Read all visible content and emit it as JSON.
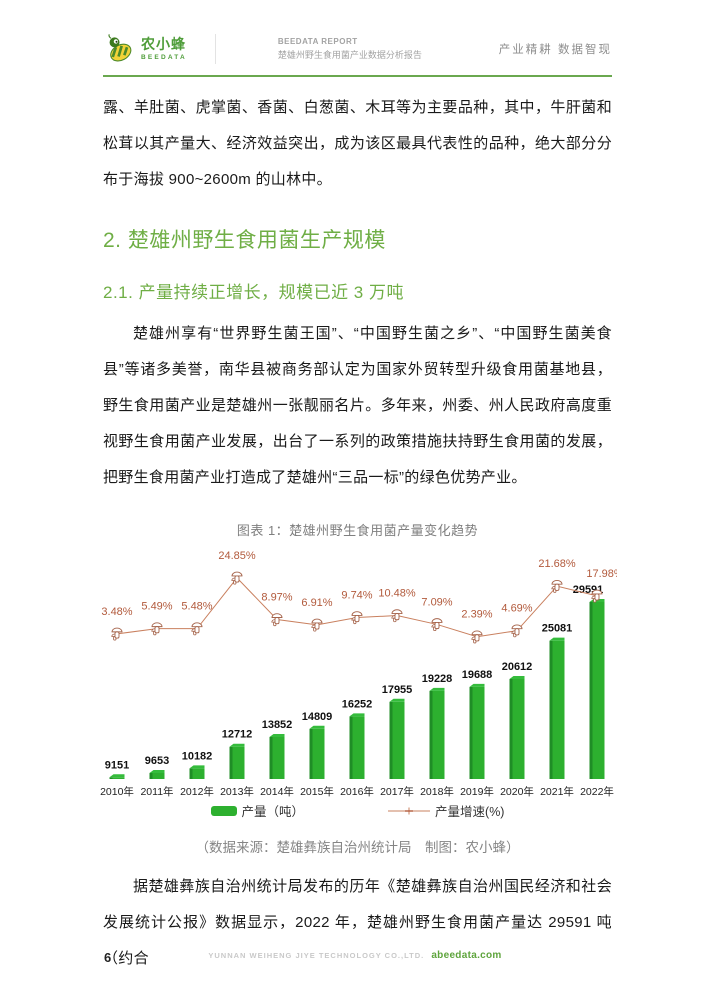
{
  "header": {
    "brand_cn": "农小蜂",
    "brand_en": "BEEDATA",
    "report_label": "BEEDATA REPORT",
    "report_subtitle": "楚雄州野生食用菌产业数据分析报告",
    "slogan": "产业精耕 数据智现"
  },
  "content": {
    "paragraph1": "露、羊肚菌、虎掌菌、香菌、白葱菌、木耳等为主要品种，其中，牛肝菌和松茸以其产量大、经济效益突出，成为该区最具代表性的品种，绝大部分分布于海拔 900~2600m 的山林中。",
    "heading2": "2. 楚雄州野生食用菌生产规模",
    "heading2_1": "2.1. 产量持续正增长，规模已近 3 万吨",
    "paragraph2": "楚雄州享有“世界野生菌王国”、“中国野生菌之乡”、“中国野生菌美食县”等诸多美誉，南华县被商务部认定为国家外贸转型升级食用菌基地县，野生食用菌产业是楚雄州一张靓丽名片。多年来，州委、州人民政府高度重视野生食用菌产业发展，出台了一系列的政策措施扶持野生食用菌的发展，把野生食用菌产业打造成了楚雄州“三品一标”的绿色优势产业。",
    "chart_caption": "图表 1：楚雄州野生食用菌产量变化趋势",
    "source_note": "（数据来源：楚雄彝族自治州统计局　制图：农小蜂）",
    "paragraph3": "据楚雄彝族自治州统计局发布的历年《楚雄彝族自治州国民经济和社会发展统计公报》数据显示，2022 年，楚雄州野生食用菌产量达 29591 吨（约合"
  },
  "chart_data": {
    "type": "bar+line",
    "title": "图表 1：楚雄州野生食用菌产量变化趋势",
    "categories": [
      "2010年",
      "2011年",
      "2012年",
      "2013年",
      "2014年",
      "2015年",
      "2016年",
      "2017年",
      "2018年",
      "2019年",
      "2020年",
      "2021年",
      "2022年"
    ],
    "series": [
      {
        "name": "产量（吨）",
        "type": "bar",
        "values": [
          9151,
          9653,
          10182,
          12712,
          13852,
          14809,
          16252,
          17955,
          19228,
          19688,
          20612,
          25081,
          29591
        ],
        "color": "#2db02f"
      },
      {
        "name": "产量增速(%)",
        "type": "line",
        "values": [
          3.48,
          5.49,
          5.48,
          24.85,
          8.97,
          6.91,
          9.74,
          10.48,
          7.09,
          2.39,
          4.69,
          21.68,
          17.98
        ],
        "color": "#c9805f"
      }
    ],
    "value_labels_shown": true,
    "grid": false,
    "legend_position": "bottom",
    "marker_style": "mushroom-icon"
  },
  "footer": {
    "page_number": "6",
    "company": "YUNNAN WEIHENG JIYE TECHNOLOGY CO.,LTD.",
    "website": "abeedata.com"
  },
  "colors": {
    "accent_green": "#6aa84f",
    "heading_green": "#6fae45",
    "bar_green": "#2db02f",
    "bar_side_green": "#1f8d26",
    "line_salmon": "#c9805f",
    "pct_label": "#b25a3c",
    "body_text": "#1a1a1a",
    "muted_gray": "#858585"
  }
}
